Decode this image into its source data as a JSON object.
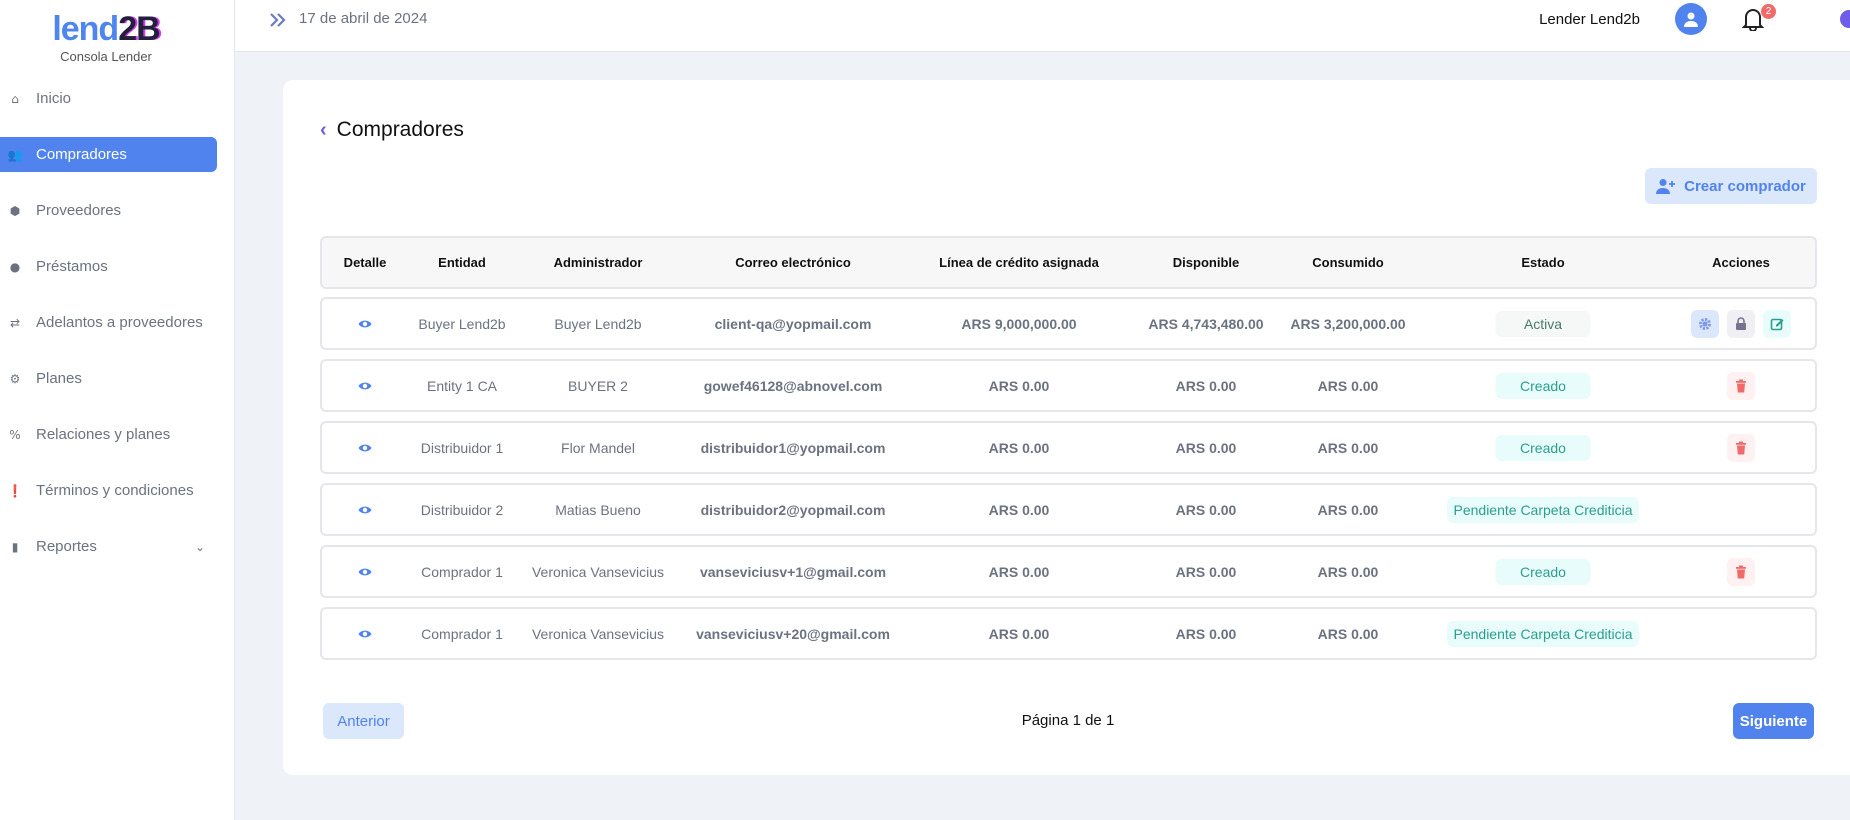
{
  "brand": {
    "logo_part1": "lend",
    "logo_part2": "2B",
    "subtitle": "Consola Lender"
  },
  "sidebar": {
    "items": [
      {
        "label": "Inicio",
        "icon": "home-icon",
        "glyph": "⌂"
      },
      {
        "label": "Compradores",
        "icon": "users-icon",
        "glyph": "👥",
        "active": true
      },
      {
        "label": "Proveedores",
        "icon": "box-icon",
        "glyph": "⬢"
      },
      {
        "label": "Préstamos",
        "icon": "money-hand-icon",
        "glyph": "●"
      },
      {
        "label": "Adelantos a proveedores",
        "icon": "exchange-icon",
        "glyph": "⇄"
      },
      {
        "label": "Planes",
        "icon": "gear-icon",
        "glyph": "⚙"
      },
      {
        "label": "Relaciones y planes",
        "icon": "percent-icon",
        "glyph": "%"
      },
      {
        "label": "Términos y condiciones",
        "icon": "exclamation-circle-icon",
        "glyph": "❗"
      },
      {
        "label": "Reportes",
        "icon": "bar-chart-icon",
        "glyph": "▮",
        "has_submenu": true
      }
    ]
  },
  "header": {
    "date": "17 de abril de 2024",
    "user_name": "Lender Lend2b",
    "notification_count": "2"
  },
  "main": {
    "title": "Compradores",
    "create_button": "Crear comprador",
    "columns": [
      "Detalle",
      "Entidad",
      "Administrador",
      "Correo electrónico",
      "Línea de crédito asignada",
      "Disponible",
      "Consumido",
      "Estado",
      "Acciones"
    ],
    "rows": [
      {
        "entidad": "Buyer Lend2b",
        "administrador": "Buyer Lend2b",
        "correo": "client-qa@yopmail.com",
        "linea": "ARS 9,000,000.00",
        "disponible": "ARS 4,743,480.00",
        "consumido": "ARS 3,200,000.00",
        "estado": "Activa",
        "acciones": [
          "settings",
          "lock",
          "edit"
        ]
      },
      {
        "entidad": "Entity 1 CA",
        "administrador": "BUYER 2",
        "correo": "gowef46128@abnovel.com",
        "linea": "ARS 0.00",
        "disponible": "ARS 0.00",
        "consumido": "ARS 0.00",
        "estado": "Creado",
        "acciones": [
          "delete"
        ]
      },
      {
        "entidad": "Distribuidor 1",
        "administrador": "Flor Mandel",
        "correo": "distribuidor1@yopmail.com",
        "linea": "ARS 0.00",
        "disponible": "ARS 0.00",
        "consumido": "ARS 0.00",
        "estado": "Creado",
        "acciones": [
          "delete"
        ]
      },
      {
        "entidad": "Distribuidor 2",
        "administrador": "Matias Bueno",
        "correo": "distribuidor2@yopmail.com",
        "linea": "ARS 0.00",
        "disponible": "ARS 0.00",
        "consumido": "ARS 0.00",
        "estado": "Pendiente Carpeta Crediticia",
        "acciones": []
      },
      {
        "entidad": "Comprador 1",
        "administrador": "Veronica Vansevicius",
        "correo": "vanseviciusv+1@gmail.com",
        "linea": "ARS 0.00",
        "disponible": "ARS 0.00",
        "consumido": "ARS 0.00",
        "estado": "Creado",
        "acciones": [
          "delete"
        ]
      },
      {
        "entidad": "Comprador 1",
        "administrador": "Veronica Vansevicius",
        "correo": "vanseviciusv+20@gmail.com",
        "linea": "ARS 0.00",
        "disponible": "ARS 0.00",
        "consumido": "ARS 0.00",
        "estado": "Pendiente Carpeta Crediticia",
        "acciones": []
      }
    ],
    "pagination": {
      "prev": "Anterior",
      "page_text": "Página 1 de 1",
      "next": "Siguiente"
    }
  }
}
